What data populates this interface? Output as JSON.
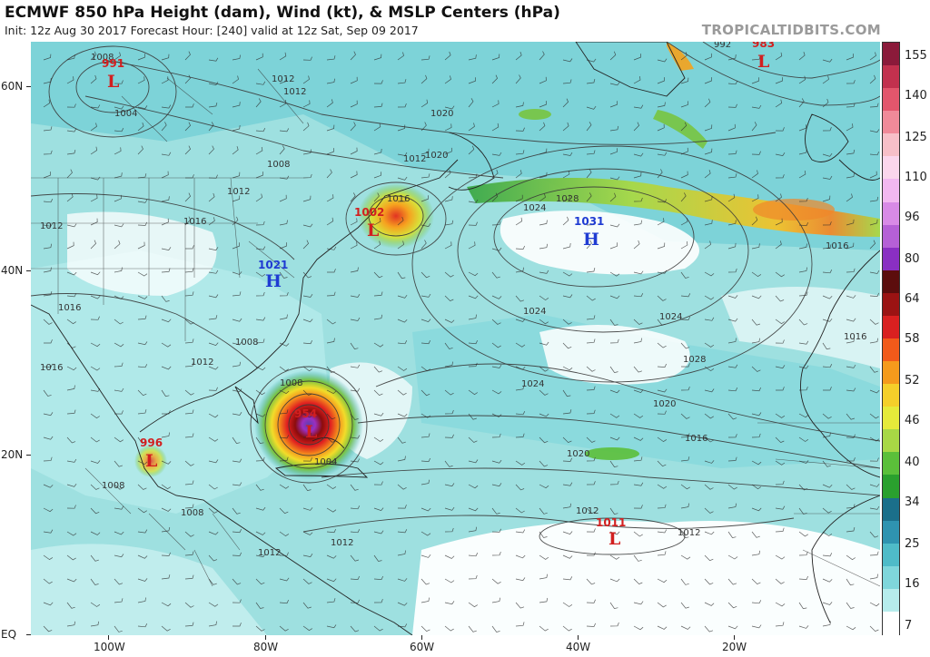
{
  "header": {
    "title": "ECMWF 850 hPa Height (dam), Wind (kt), & MSLP Centers (hPa)",
    "subtitle": "Init: 12z Aug 30 2017   Forecast Hour: [240]   valid at 12z Sat, Sep 09 2017",
    "brand": "TROPICALTIDBITS.COM"
  },
  "axes": {
    "lat_labels": [
      "60N",
      "40N",
      "20N",
      "EQ"
    ],
    "lon_labels": [
      "100W",
      "80W",
      "60W",
      "40W",
      "20W"
    ]
  },
  "colorbar": {
    "labels": [
      "155",
      "140",
      "125",
      "110",
      "96",
      "80",
      "64",
      "58",
      "52",
      "46",
      "40",
      "34",
      "25",
      "16",
      "7"
    ],
    "colors": [
      "#8b1a3a",
      "#c2314e",
      "#e2566c",
      "#f08a99",
      "#f7bfc8",
      "#fbd6ec",
      "#f2b8f0",
      "#d88ae6",
      "#b560d6",
      "#8a2fc2",
      "#5c0d0d",
      "#9b1313",
      "#d92020",
      "#f25a1a",
      "#f59a1c",
      "#f5cf2a",
      "#e6ea3a",
      "#a8d845",
      "#5bbf3a",
      "#2aa02e",
      "#1b6f8a",
      "#2f93b0",
      "#4fbbc8",
      "#7fd6db",
      "#b6ecec",
      "#ffffff"
    ]
  },
  "contour_labels": [
    "1008",
    "992",
    "1012",
    "1012",
    "1004",
    "1008",
    "1012",
    "1012",
    "1016",
    "1016",
    "1008",
    "1012",
    "1016",
    "1012",
    "1016",
    "1020",
    "1024",
    "1028",
    "1024",
    "1024",
    "1028",
    "1024",
    "1020",
    "1020",
    "1016",
    "1016",
    "1016",
    "1012",
    "1012",
    "1008",
    "1008",
    "1008",
    "1004",
    "1012",
    "1012",
    "1020"
  ],
  "centers": {
    "lows": [
      {
        "pressure": "991",
        "letter": "L"
      },
      {
        "pressure": "983",
        "letter": "L"
      },
      {
        "pressure": "1002",
        "letter": "L"
      },
      {
        "pressure": "996",
        "letter": "L"
      },
      {
        "pressure": "954",
        "letter": "L"
      },
      {
        "pressure": "1011",
        "letter": "L"
      }
    ],
    "highs": [
      {
        "pressure": "1031",
        "letter": "H"
      },
      {
        "pressure": "1021",
        "letter": "H"
      }
    ]
  }
}
